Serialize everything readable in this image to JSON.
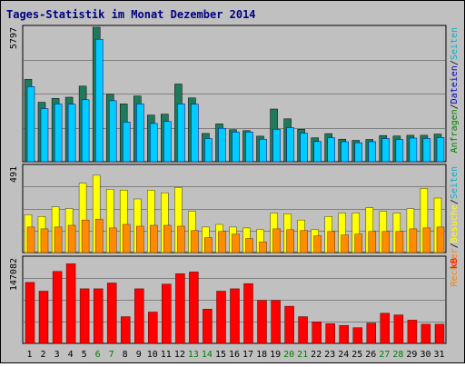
{
  "title": "Tages-Statistik im Monat Dezember 2014",
  "colors": {
    "background": "#c0c0c0",
    "plot": "#c0c0c0",
    "grid": "#808080",
    "title": "#000080",
    "weekday": "#000000",
    "weekend": "#008000",
    "hits_bar": "#1f7a5c",
    "files_bar": "#00ccff",
    "pages_bar": "#00b0ff",
    "visits_bar": "#ffff00",
    "sites_bar": "#ff8c00",
    "kb_bar": "#ff0000"
  },
  "chart_data": [
    {
      "type": "bar",
      "name": "top-panel",
      "ylim": [
        0,
        5797
      ],
      "max_label": "5797",
      "right_label_segments": [
        {
          "text": "Anfragen",
          "color": "#008000"
        },
        {
          "text": "/",
          "color": "#000000"
        },
        {
          "text": "Dateien",
          "color": "#0000c0"
        },
        {
          "text": "/",
          "color": "#000000"
        },
        {
          "text": "Seiten",
          "color": "#00b0d0"
        }
      ],
      "categories": [
        "1",
        "2",
        "3",
        "4",
        "5",
        "6",
        "7",
        "8",
        "9",
        "10",
        "11",
        "12",
        "13",
        "14",
        "15",
        "16",
        "17",
        "18",
        "19",
        "20",
        "21",
        "22",
        "23",
        "24",
        "25",
        "26",
        "27",
        "28",
        "29",
        "30",
        "31"
      ],
      "series": [
        {
          "name": "Anfragen",
          "values": [
            3550,
            2560,
            2730,
            2780,
            3260,
            5797,
            2910,
            2490,
            2830,
            2010,
            2050,
            3350,
            2750,
            1220,
            1630,
            1380,
            1340,
            1100,
            2270,
            1850,
            1400,
            1030,
            1210,
            970,
            920,
            960,
            1130,
            1110,
            1140,
            1140,
            1190
          ]
        },
        {
          "name": "Dateien",
          "values": [
            3240,
            2290,
            2490,
            2480,
            2670,
            5280,
            2630,
            1710,
            2490,
            1650,
            1740,
            2490,
            2480,
            1000,
            1440,
            1280,
            1280,
            970,
            1400,
            1470,
            1230,
            870,
            1030,
            860,
            820,
            860,
            1000,
            960,
            1020,
            1000,
            1040
          ]
        }
      ]
    },
    {
      "type": "bar",
      "name": "middle-panel",
      "ylim": [
        0,
        491
      ],
      "max_label": "491",
      "right_label_segments": [
        {
          "text": "Rechner",
          "color": "#ff8000"
        },
        {
          "text": "/",
          "color": "#000000"
        },
        {
          "text": "Besuche",
          "color": "#ffff00"
        },
        {
          "text": "/",
          "color": "#000000"
        },
        {
          "text": "Seiten",
          "color": "#00b0d0"
        }
      ],
      "categories": [
        "1",
        "2",
        "3",
        "4",
        "5",
        "6",
        "7",
        "8",
        "9",
        "10",
        "11",
        "12",
        "13",
        "14",
        "15",
        "16",
        "17",
        "18",
        "19",
        "20",
        "21",
        "22",
        "23",
        "24",
        "25",
        "26",
        "27",
        "28",
        "29",
        "30",
        "31"
      ],
      "series": [
        {
          "name": "Besuche",
          "values": [
            215,
            205,
            260,
            250,
            395,
            440,
            360,
            355,
            305,
            355,
            340,
            370,
            235,
            145,
            160,
            145,
            140,
            130,
            225,
            220,
            185,
            130,
            205,
            225,
            225,
            255,
            235,
            225,
            250,
            365,
            310
          ]
        },
        {
          "name": "Rechner",
          "values": [
            145,
            135,
            145,
            155,
            185,
            190,
            140,
            160,
            150,
            155,
            155,
            150,
            125,
            85,
            120,
            105,
            80,
            60,
            135,
            130,
            125,
            95,
            120,
            100,
            105,
            120,
            120,
            120,
            135,
            140,
            145
          ]
        }
      ]
    },
    {
      "type": "bar",
      "name": "bottom-panel",
      "ylim": [
        0,
        147082
      ],
      "max_label": "147082",
      "right_label_segments": [
        {
          "text": "kB",
          "color": "#ff0000"
        }
      ],
      "categories": [
        "1",
        "2",
        "3",
        "4",
        "5",
        "6",
        "7",
        "8",
        "9",
        "10",
        "11",
        "12",
        "13",
        "14",
        "15",
        "16",
        "17",
        "18",
        "19",
        "20",
        "21",
        "22",
        "23",
        "24",
        "25",
        "26",
        "27",
        "28",
        "29",
        "30",
        "31"
      ],
      "series": [
        {
          "name": "kB",
          "values": [
            105000,
            90000,
            124000,
            137000,
            94000,
            94000,
            104000,
            46000,
            94000,
            54000,
            102000,
            120000,
            123000,
            59000,
            90000,
            94000,
            103000,
            74000,
            74000,
            64000,
            46000,
            37000,
            34000,
            31000,
            27000,
            35000,
            52000,
            49000,
            40000,
            33000,
            33000
          ]
        }
      ]
    }
  ],
  "days": [
    {
      "label": "1",
      "weekend": false
    },
    {
      "label": "2",
      "weekend": false
    },
    {
      "label": "3",
      "weekend": false
    },
    {
      "label": "4",
      "weekend": false
    },
    {
      "label": "5",
      "weekend": false
    },
    {
      "label": "6",
      "weekend": true
    },
    {
      "label": "7",
      "weekend": true
    },
    {
      "label": "8",
      "weekend": false
    },
    {
      "label": "9",
      "weekend": false
    },
    {
      "label": "10",
      "weekend": false
    },
    {
      "label": "11",
      "weekend": false
    },
    {
      "label": "12",
      "weekend": false
    },
    {
      "label": "13",
      "weekend": true
    },
    {
      "label": "14",
      "weekend": true
    },
    {
      "label": "15",
      "weekend": false
    },
    {
      "label": "16",
      "weekend": false
    },
    {
      "label": "17",
      "weekend": false
    },
    {
      "label": "18",
      "weekend": false
    },
    {
      "label": "19",
      "weekend": false
    },
    {
      "label": "20",
      "weekend": true
    },
    {
      "label": "21",
      "weekend": true
    },
    {
      "label": "22",
      "weekend": false
    },
    {
      "label": "23",
      "weekend": false
    },
    {
      "label": "24",
      "weekend": false
    },
    {
      "label": "25",
      "weekend": false
    },
    {
      "label": "26",
      "weekend": false
    },
    {
      "label": "27",
      "weekend": true
    },
    {
      "label": "28",
      "weekend": true
    },
    {
      "label": "29",
      "weekend": false
    },
    {
      "label": "30",
      "weekend": false
    },
    {
      "label": "31",
      "weekend": false
    }
  ]
}
